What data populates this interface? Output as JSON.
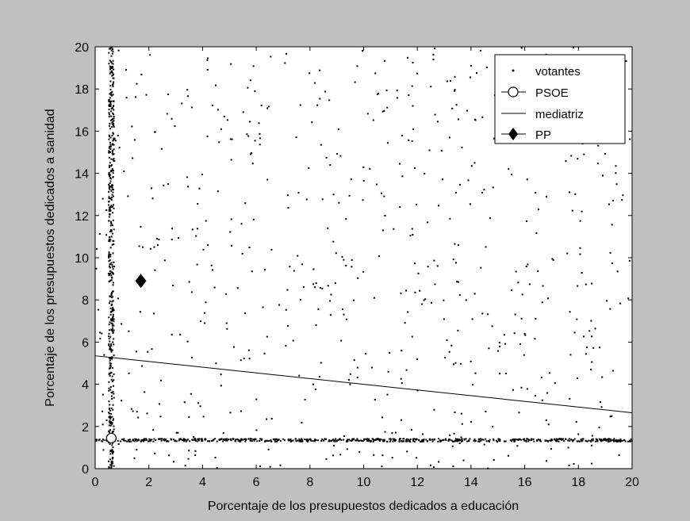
{
  "chart_data": {
    "type": "scatter",
    "xlabel": "Porcentaje de los presupuestos dedicados a educación",
    "ylabel": "Porcentaje de los presupuestos dedicados a sanidad",
    "xlim": [
      0,
      20
    ],
    "ylim": [
      0,
      20
    ],
    "xticks": [
      "0",
      "2",
      "4",
      "6",
      "8",
      "10",
      "12",
      "14",
      "16",
      "18",
      "20"
    ],
    "yticks": [
      "0",
      "2",
      "4",
      "6",
      "8",
      "10",
      "12",
      "14",
      "16",
      "18",
      "20"
    ],
    "grid": false,
    "legend_position": "top-right",
    "series": [
      {
        "name": "votantes",
        "marker": "dot",
        "color": "#000000",
        "note_clusters": {
          "vertical_band_x": 0.6,
          "horizontal_band_y": 1.35,
          "uniform_range": [
            0,
            20
          ]
        }
      },
      {
        "name": "PSOE",
        "marker": "open-circle",
        "color": "#000000",
        "x": [
          0.6
        ],
        "y": [
          1.45
        ]
      },
      {
        "name": "mediatriz",
        "marker": "line",
        "color": "#000000",
        "x": [
          0,
          20
        ],
        "y": [
          5.35,
          2.65
        ]
      },
      {
        "name": "PP",
        "marker": "filled-diamond",
        "color": "#000000",
        "x": [
          1.7
        ],
        "y": [
          8.9
        ]
      }
    ]
  }
}
